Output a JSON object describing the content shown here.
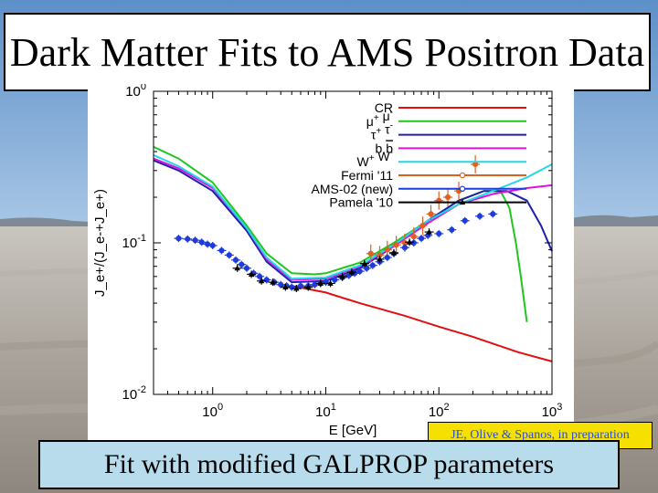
{
  "slide": {
    "title": "Dark Matter Fits to AMS Positron Data",
    "credit": "JE, Olive & Spanos, in preparation",
    "caption": "Fit with modified GALPROP parameters"
  },
  "chart_data": {
    "type": "line",
    "xscale": "log",
    "yscale": "log",
    "xlim": [
      0.3,
      1000
    ],
    "ylim": [
      0.01,
      1
    ],
    "xlabel": "E [GeV]",
    "ylabel": "J_e+/(J_e-+J_e+)",
    "xticks": [
      {
        "v": 1,
        "b": "10",
        "e": "0"
      },
      {
        "v": 10,
        "b": "10",
        "e": "1"
      },
      {
        "v": 100,
        "b": "10",
        "e": "2"
      },
      {
        "v": 1000,
        "b": "10",
        "e": "3"
      }
    ],
    "yticks": [
      {
        "v": 1,
        "b": "10",
        "e": "0"
      },
      {
        "v": 0.1,
        "b": "10",
        "e": "-1"
      },
      {
        "v": 0.01,
        "b": "10",
        "e": "-2"
      }
    ],
    "legend_position": "top-right",
    "series": [
      {
        "name": "CR",
        "label": [
          {
            "t": "CR"
          }
        ],
        "color": "#e01010",
        "kind": "line",
        "points": [
          [
            5,
            0.052
          ],
          [
            10,
            0.047
          ],
          [
            20,
            0.04
          ],
          [
            50,
            0.033
          ],
          [
            100,
            0.028
          ],
          [
            200,
            0.024
          ],
          [
            500,
            0.019
          ],
          [
            1000,
            0.0165
          ]
        ]
      },
      {
        "name": "mu+ mu-",
        "label": [
          {
            "t": "μ"
          },
          {
            "t": "+",
            "s": "sup"
          },
          {
            "t": " μ"
          },
          {
            "t": "-",
            "s": "sup"
          }
        ],
        "color": "#1ec81e",
        "kind": "line",
        "points": [
          [
            0.3,
            0.43
          ],
          [
            0.5,
            0.36
          ],
          [
            1,
            0.25
          ],
          [
            2,
            0.13
          ],
          [
            3,
            0.085
          ],
          [
            5,
            0.063
          ],
          [
            8,
            0.062
          ],
          [
            10,
            0.063
          ],
          [
            20,
            0.074
          ],
          [
            40,
            0.1
          ],
          [
            80,
            0.14
          ],
          [
            150,
            0.19
          ],
          [
            250,
            0.22
          ],
          [
            350,
            0.22
          ],
          [
            420,
            0.17
          ],
          [
            480,
            0.1
          ],
          [
            530,
            0.06
          ],
          [
            600,
            0.03
          ]
        ]
      },
      {
        "name": "tau+ tau-",
        "label": [
          {
            "t": "τ"
          },
          {
            "t": "+",
            "s": "sup"
          },
          {
            "t": " τ"
          },
          {
            "t": "-",
            "s": "sup"
          }
        ],
        "color": "#2020b0",
        "kind": "line",
        "points": [
          [
            0.3,
            0.35
          ],
          [
            0.5,
            0.3
          ],
          [
            1,
            0.22
          ],
          [
            2,
            0.12
          ],
          [
            3,
            0.075
          ],
          [
            5,
            0.055
          ],
          [
            10,
            0.056
          ],
          [
            20,
            0.068
          ],
          [
            40,
            0.095
          ],
          [
            80,
            0.14
          ],
          [
            150,
            0.19
          ],
          [
            250,
            0.22
          ],
          [
            400,
            0.22
          ],
          [
            600,
            0.19
          ],
          [
            800,
            0.13
          ],
          [
            1000,
            0.088
          ]
        ]
      },
      {
        "name": "b b-bar",
        "label": [
          {
            "t": "b "
          },
          {
            "t": "b",
            "s": "bar"
          }
        ],
        "color": "#e010e0",
        "kind": "line",
        "points": [
          [
            0.3,
            0.36
          ],
          [
            0.5,
            0.31
          ],
          [
            1,
            0.23
          ],
          [
            2,
            0.125
          ],
          [
            3,
            0.078
          ],
          [
            5,
            0.057
          ],
          [
            10,
            0.058
          ],
          [
            20,
            0.07
          ],
          [
            40,
            0.095
          ],
          [
            80,
            0.135
          ],
          [
            150,
            0.18
          ],
          [
            300,
            0.21
          ],
          [
            600,
            0.23
          ],
          [
            1000,
            0.24
          ]
        ]
      },
      {
        "name": "W+ W-",
        "label": [
          {
            "t": "W"
          },
          {
            "t": "+",
            "s": "sup"
          },
          {
            "t": " W"
          },
          {
            "t": "-",
            "s": "sup"
          }
        ],
        "color": "#20d8e8",
        "kind": "line",
        "points": [
          [
            0.3,
            0.38
          ],
          [
            0.5,
            0.32
          ],
          [
            1,
            0.235
          ],
          [
            2,
            0.125
          ],
          [
            3,
            0.08
          ],
          [
            5,
            0.058
          ],
          [
            10,
            0.059
          ],
          [
            20,
            0.071
          ],
          [
            40,
            0.097
          ],
          [
            80,
            0.14
          ],
          [
            150,
            0.18
          ],
          [
            300,
            0.22
          ],
          [
            600,
            0.27
          ],
          [
            1000,
            0.33
          ]
        ]
      },
      {
        "name": "Fermi '11",
        "label": [
          {
            "t": "Fermi '11"
          }
        ],
        "color": "#e06020",
        "kind": "points",
        "marker": "o",
        "points": [
          [
            25,
            0.085
          ],
          [
            30,
            0.083
          ],
          [
            35,
            0.09
          ],
          [
            42,
            0.097
          ],
          [
            50,
            0.1
          ],
          [
            60,
            0.11
          ],
          [
            72,
            0.13
          ],
          [
            85,
            0.155
          ],
          [
            100,
            0.19
          ],
          [
            120,
            0.2
          ],
          [
            150,
            0.22
          ],
          [
            210,
            0.33
          ]
        ]
      },
      {
        "name": "AMS-02 (new)",
        "label": [
          {
            "t": "AMS-02 (new)"
          }
        ],
        "color": "#1e3cdc",
        "kind": "points",
        "marker": "o",
        "points": [
          [
            0.5,
            0.107
          ],
          [
            0.6,
            0.106
          ],
          [
            0.7,
            0.104
          ],
          [
            0.8,
            0.101
          ],
          [
            0.9,
            0.098
          ],
          [
            1,
            0.096
          ],
          [
            1.2,
            0.089
          ],
          [
            1.4,
            0.083
          ],
          [
            1.6,
            0.077
          ],
          [
            1.8,
            0.072
          ],
          [
            2,
            0.068
          ],
          [
            2.3,
            0.063
          ],
          [
            2.6,
            0.06
          ],
          [
            3,
            0.057
          ],
          [
            3.5,
            0.055
          ],
          [
            4,
            0.053
          ],
          [
            4.5,
            0.052
          ],
          [
            5,
            0.051
          ],
          [
            6,
            0.052
          ],
          [
            7,
            0.052
          ],
          [
            8,
            0.053
          ],
          [
            9,
            0.054
          ],
          [
            10,
            0.055
          ],
          [
            12,
            0.057
          ],
          [
            14,
            0.059
          ],
          [
            16,
            0.061
          ],
          [
            18,
            0.063
          ],
          [
            20,
            0.065
          ],
          [
            23,
            0.068
          ],
          [
            26,
            0.071
          ],
          [
            30,
            0.075
          ],
          [
            35,
            0.08
          ],
          [
            40,
            0.085
          ],
          [
            50,
            0.093
          ],
          [
            60,
            0.1
          ],
          [
            70,
            0.107
          ],
          [
            80,
            0.112
          ],
          [
            100,
            0.115
          ],
          [
            130,
            0.122
          ],
          [
            170,
            0.14
          ],
          [
            230,
            0.15
          ],
          [
            300,
            0.155
          ]
        ]
      },
      {
        "name": "Pamela '10",
        "label": [
          {
            "t": "Pamela '10"
          }
        ],
        "color": "#000000",
        "kind": "points",
        "marker": "^",
        "points": [
          [
            1.65,
            0.068
          ],
          [
            2.2,
            0.062
          ],
          [
            2.7,
            0.056
          ],
          [
            3.4,
            0.055
          ],
          [
            4.4,
            0.051
          ],
          [
            5.5,
            0.05
          ],
          [
            7,
            0.051
          ],
          [
            9,
            0.054
          ],
          [
            11,
            0.054
          ],
          [
            14,
            0.06
          ],
          [
            17,
            0.064
          ],
          [
            22,
            0.073
          ],
          [
            30,
            0.078
          ],
          [
            40,
            0.086
          ],
          [
            55,
            0.101
          ],
          [
            82,
            0.118
          ]
        ]
      }
    ]
  }
}
